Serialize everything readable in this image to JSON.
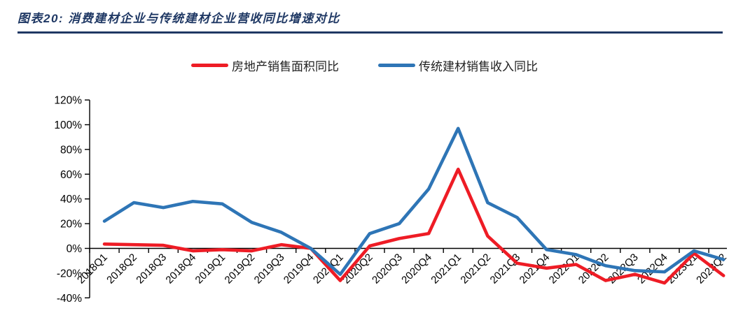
{
  "figure": {
    "caption": "图表20:  消费建材企业与传统建材企业营收同比增速对比",
    "accent_color": "#1F3864"
  },
  "legend": [
    {
      "label": "房地产销售面积同比",
      "color": "#EE1C25"
    },
    {
      "label": "传统建材销售收入同比",
      "color": "#2E75B6"
    }
  ],
  "chart_data": {
    "type": "line",
    "categories": [
      "2018Q1",
      "2018Q2",
      "2018Q3",
      "2018Q4",
      "2019Q1",
      "2019Q2",
      "2019Q3",
      "2019Q4",
      "2020Q1",
      "2020Q2",
      "2020Q3",
      "2020Q4",
      "2021Q1",
      "2021Q2",
      "2021Q3",
      "2021Q4",
      "2022Q1",
      "2022Q2",
      "2022Q3",
      "2022Q4",
      "2023Q1",
      "2023Q2"
    ],
    "series": [
      {
        "name": "房地产销售面积同比",
        "color": "#EE1C25",
        "values": [
          3.5,
          3,
          2.5,
          -2,
          -1,
          -2,
          3,
          0,
          -26,
          2,
          8,
          12,
          64,
          10,
          -12,
          -16,
          -13,
          -26,
          -21,
          -28,
          -4,
          -22
        ]
      },
      {
        "name": "传统建材销售收入同比",
        "color": "#2E75B6",
        "values": [
          22,
          37,
          33,
          38,
          36,
          21,
          13,
          0,
          -21,
          12,
          20,
          48,
          97,
          37,
          25,
          -1,
          -5,
          -14,
          -18,
          -19,
          -2,
          -9
        ]
      }
    ],
    "ylim": [
      -40,
      120
    ],
    "ytick_step": 20,
    "ytick_labels": [
      "120%",
      "100%",
      "80%",
      "60%",
      "40%",
      "20%",
      "0%",
      "-20%",
      "-40%"
    ],
    "grid": false,
    "legend_position": "top",
    "x_label_rotation": -45,
    "axis_color": "#000000"
  }
}
